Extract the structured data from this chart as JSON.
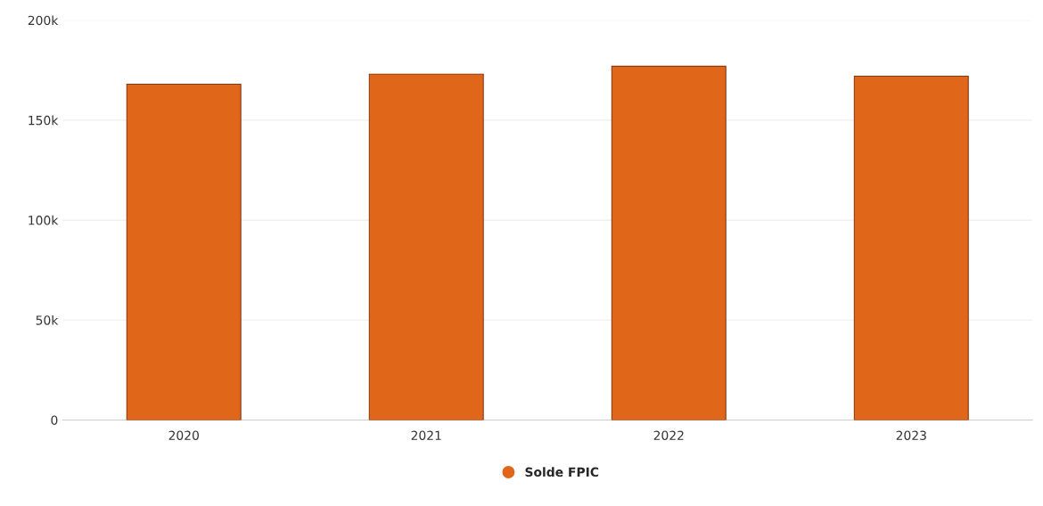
{
  "chart_data": {
    "type": "bar",
    "categories": [
      "2020",
      "2021",
      "2022",
      "2023"
    ],
    "series": [
      {
        "name": "Solde FPIC",
        "color": "#e0661a",
        "values": [
          168000,
          173000,
          177000,
          172000
        ]
      }
    ],
    "ylim": [
      0,
      200000
    ],
    "yticks": [
      {
        "value": 0,
        "label": "0"
      },
      {
        "value": 50000,
        "label": "50k"
      },
      {
        "value": 100000,
        "label": "100k"
      },
      {
        "value": 150000,
        "label": "150k"
      },
      {
        "value": 200000,
        "label": "200k"
      }
    ],
    "grid": "y",
    "legend": "bottom"
  }
}
